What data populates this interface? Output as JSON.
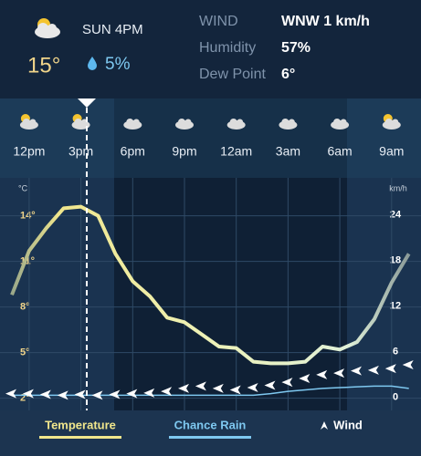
{
  "header": {
    "time": "SUN 4PM",
    "temp": "15°",
    "rain": "5%",
    "wind_label": "WIND",
    "wind": "WNW 1 km/h",
    "humidity_label": "Humidity",
    "humidity": "57%",
    "dew_label": "Dew Point",
    "dew": "6°"
  },
  "chart_data": {
    "type": "line",
    "categories": [
      null,
      "12pm",
      null,
      null,
      "3pm",
      null,
      null,
      "6pm",
      null,
      null,
      "9pm",
      null,
      null,
      "12am",
      null,
      null,
      "3am",
      null,
      null,
      "6am",
      null,
      null,
      "9am",
      null
    ],
    "ylabel": "°C",
    "y2label": "km/h",
    "ylim": [
      1.2,
      16.5
    ],
    "yticks": [
      {
        "value": 2,
        "label": "2°"
      },
      {
        "value": 5,
        "label": "5°"
      },
      {
        "value": 8,
        "label": "8°"
      },
      {
        "value": 11,
        "label": "11°"
      },
      {
        "value": 14,
        "label": "14°"
      }
    ],
    "y2lim": [
      -1.7,
      28.9
    ],
    "y2ticks": [
      0,
      6,
      12,
      18,
      24
    ],
    "series": [
      {
        "name": "Temperature",
        "color": "#f0e68c",
        "values": [
          8.8,
          11.7,
          13.2,
          14.5,
          14.6,
          14.0,
          11.5,
          9.7,
          8.7,
          7.3,
          7.0,
          6.2,
          5.4,
          5.3,
          4.4,
          4.3,
          4.3,
          4.4,
          5.4,
          5.2,
          5.7,
          7.2,
          9.6,
          11.5
        ]
      },
      {
        "name": "Chance Rain",
        "color": "#7ec8f0",
        "values": [
          0.3,
          0.3,
          0.3,
          0.3,
          0.3,
          0.3,
          0.3,
          0.3,
          0.3,
          0.3,
          0.3,
          0.3,
          0.3,
          0.3,
          0.3,
          0.5,
          0.8,
          1.0,
          1.2,
          1.3,
          1.4,
          1.5,
          1.5,
          1.2
        ],
        "axis": "y2"
      },
      {
        "name": "Wind",
        "color": "#ffffff",
        "values": [
          0.5,
          0.5,
          0.4,
          0.3,
          0.4,
          0.3,
          0.4,
          0.5,
          0.6,
          0.8,
          1.2,
          1.5,
          1.2,
          1.0,
          1.3,
          1.6,
          2.0,
          2.5,
          3.0,
          3.2,
          3.5,
          3.6,
          3.8,
          4.3
        ],
        "axis": "y2"
      }
    ]
  }
}
